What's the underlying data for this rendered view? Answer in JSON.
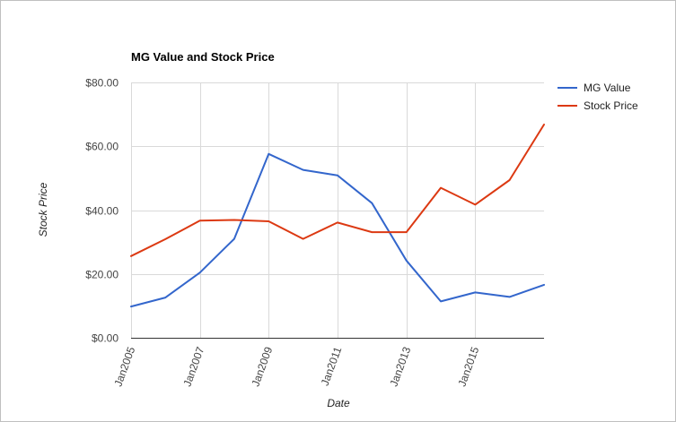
{
  "chart_data": {
    "type": "line",
    "title": "MG Value and Stock Price",
    "xlabel": "Date",
    "ylabel": "Stock Price",
    "ylim": [
      0,
      80
    ],
    "grid": true,
    "legend": "right",
    "y_ticks": [
      "$0.00",
      "$20.00",
      "$40.00",
      "$60.00",
      "$80.00"
    ],
    "y_tick_values": [
      0,
      20,
      40,
      60,
      80
    ],
    "x_tick_labels": [
      "Jan2005",
      "Jan2007",
      "Jan2009",
      "Jan2011",
      "Jan2013",
      "Jan2015"
    ],
    "x_tick_values": [
      "2005-01-01",
      "2007-01-01",
      "2009-01-01",
      "2011-01-01",
      "2013-01-01",
      "2015-01-01"
    ],
    "x_range": [
      "2005-01-01",
      "2017-01-01"
    ],
    "x": [
      "2005-01-01",
      "2006-01-01",
      "2007-01-01",
      "2008-01-01",
      "2009-01-01",
      "2010-01-01",
      "2011-01-01",
      "2012-01-01",
      "2013-01-01",
      "2014-01-01",
      "2015-01-01",
      "2016-01-01",
      "2017-01-01"
    ],
    "series": [
      {
        "name": "MG Value",
        "color": "#3366cc",
        "values": [
          9.8,
          12.6,
          20.4,
          31.0,
          57.6,
          52.6,
          50.9,
          42.2,
          24.2,
          11.4,
          14.2,
          12.8,
          16.6
        ]
      },
      {
        "name": "Stock Price",
        "color": "#dc3912",
        "values": [
          25.6,
          30.9,
          36.7,
          36.9,
          36.5,
          31.0,
          36.1,
          33.1,
          33.1,
          47.0,
          41.7,
          49.4,
          66.8
        ]
      }
    ]
  }
}
